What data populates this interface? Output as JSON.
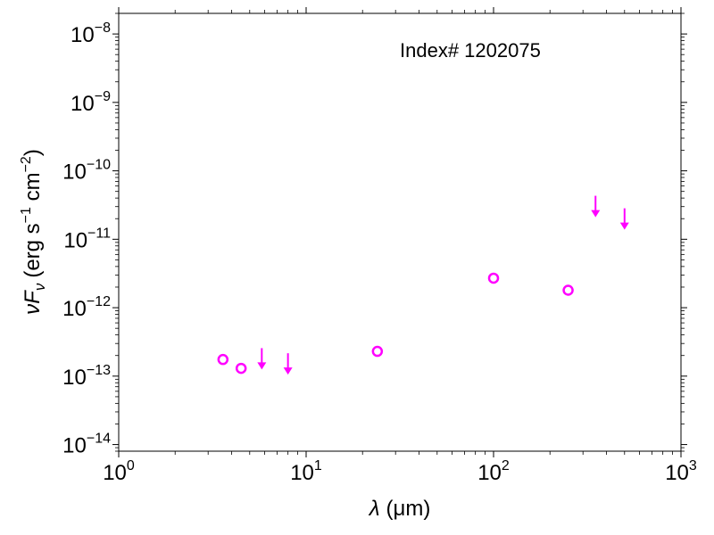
{
  "chart_data": {
    "type": "scatter",
    "annotation": "Index# 1202075",
    "xlabel": {
      "symbol": "λ",
      "unit": "(μm)"
    },
    "ylabel": {
      "symbol": "νF",
      "subscript": "ν",
      "unit_pre": "(erg s",
      "unit_exp1": "−1",
      "unit_mid": " cm",
      "unit_exp2": "−2",
      "unit_post": ")"
    },
    "xscale": "log",
    "yscale": "log",
    "xlim": [
      1,
      1000
    ],
    "ylim": [
      8e-15,
      2e-08
    ],
    "x_ticks": [
      {
        "value": 1,
        "base": "10",
        "exp": "0"
      },
      {
        "value": 10,
        "base": "10",
        "exp": "1"
      },
      {
        "value": 100,
        "base": "10",
        "exp": "2"
      },
      {
        "value": 1000,
        "base": "10",
        "exp": "3"
      }
    ],
    "y_ticks": [
      {
        "value": 1e-14,
        "base": "10",
        "exp": "−14"
      },
      {
        "value": 1e-13,
        "base": "10",
        "exp": "−13"
      },
      {
        "value": 1e-12,
        "base": "10",
        "exp": "−12"
      },
      {
        "value": 1e-11,
        "base": "10",
        "exp": "−11"
      },
      {
        "value": 1e-10,
        "base": "10",
        "exp": "−10"
      },
      {
        "value": 1e-09,
        "base": "10",
        "exp": "−9"
      },
      {
        "value": 1e-08,
        "base": "10",
        "exp": "−8"
      }
    ],
    "color": "#ff00ff",
    "series": [
      {
        "marker": "open-circle",
        "points": [
          {
            "x": 3.6,
            "y": 1.75e-13
          },
          {
            "x": 4.5,
            "y": 1.3e-13
          },
          {
            "x": 24,
            "y": 2.3e-13
          },
          {
            "x": 100,
            "y": 2.7e-12
          },
          {
            "x": 250,
            "y": 1.8e-12
          }
        ]
      },
      {
        "marker": "upper-limit-arrow",
        "points": [
          {
            "x": 5.8,
            "y": 1.9e-13
          },
          {
            "x": 8.0,
            "y": 1.6e-13
          },
          {
            "x": 350,
            "y": 3.2e-11
          },
          {
            "x": 500,
            "y": 2.1e-11
          }
        ]
      }
    ]
  }
}
